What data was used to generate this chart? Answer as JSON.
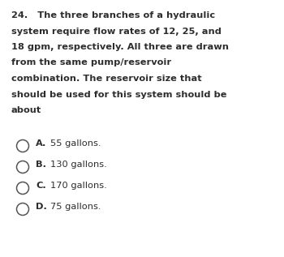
{
  "question_number": "24.",
  "question_lines": [
    "24.   The three branches of a hydraulic",
    "system require flow rates of 12, 25, and",
    "18 gpm, respectively. All three are drawn",
    "from the same pump/reservoir",
    "combination. The reservoir size that",
    "should be used for this system should be",
    "about"
  ],
  "options": [
    {
      "letter": "A.",
      "text": "55 gallons."
    },
    {
      "letter": "B.",
      "text": "130 gallons."
    },
    {
      "letter": "C.",
      "text": "170 gallons."
    },
    {
      "letter": "D.",
      "text": "75 gallons."
    }
  ],
  "background_color": "#ffffff",
  "text_color": "#2d2d2d",
  "question_fontsize": 8.2,
  "option_fontsize": 8.2,
  "circle_color": "#555555"
}
